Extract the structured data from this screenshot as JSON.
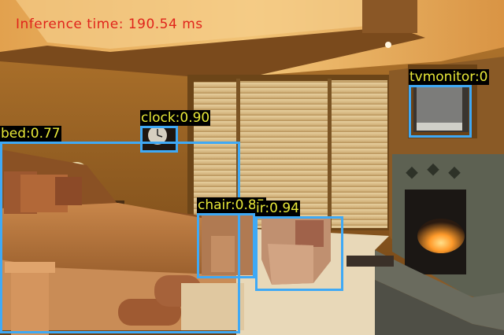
{
  "overlay": {
    "inference_text": "Inference time: 190.54 ms",
    "inference_color": "#e0241b",
    "box_color": "#3fa9f5",
    "label_text_color": "#e8e838"
  },
  "detections": [
    {
      "label": "bed:0.77",
      "class": "bed",
      "score": 0.77
    },
    {
      "label": "clock:0.90",
      "class": "clock",
      "score": 0.9
    },
    {
      "label": "tvmonitor:0",
      "class": "tvmonitor"
    },
    {
      "label": "chair:0.85",
      "class": "chair",
      "score": 0.85
    },
    {
      "label": "ir:0.94",
      "class": "chair"
    }
  ]
}
